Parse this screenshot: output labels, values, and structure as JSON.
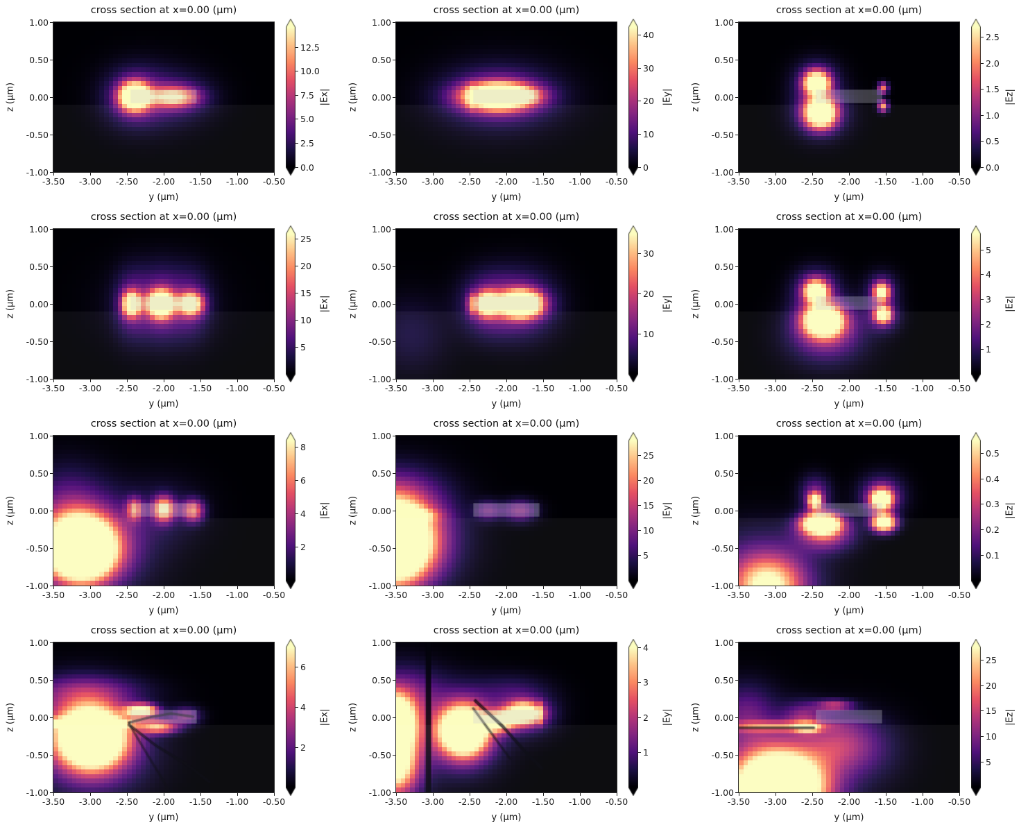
{
  "figure": {
    "background": "#ffffff",
    "rows": 4,
    "cols": 3
  },
  "colormap": {
    "name": "magma",
    "stops": [
      [
        0.0,
        "#000004"
      ],
      [
        0.125,
        "#1c1044"
      ],
      [
        0.25,
        "#4f127b"
      ],
      [
        0.375,
        "#812581"
      ],
      [
        0.5,
        "#b5367a"
      ],
      [
        0.625,
        "#e55064"
      ],
      [
        0.75,
        "#fb8861"
      ],
      [
        0.875,
        "#fec287"
      ],
      [
        1.0,
        "#fcfdbf"
      ]
    ]
  },
  "axes": {
    "xlim": [
      -3.5,
      -0.5
    ],
    "ylim": [
      -1.0,
      1.0
    ],
    "xticks": [
      [
        "-3.50",
        -3.5
      ],
      [
        "-3.00",
        -3.0
      ],
      [
        "-2.50",
        -2.5
      ],
      [
        "-2.00",
        -2.0
      ],
      [
        "-1.50",
        -1.5
      ],
      [
        "-1.00",
        -1.0
      ],
      [
        "-0.50",
        -0.5
      ]
    ],
    "yticks": [
      [
        "1.00",
        1.0
      ],
      [
        "0.50",
        0.5
      ],
      [
        "0.00",
        0.0
      ],
      [
        "-0.50",
        -0.5
      ],
      [
        "-1.00",
        -1.0
      ]
    ]
  },
  "structures": {
    "waveguide": {
      "y": [
        -2.45,
        -1.55
      ],
      "z": [
        -0.08,
        0.1
      ],
      "overlay_color": "rgba(205,205,215,0.30)"
    },
    "substrate_top_z": -0.1,
    "substrate_overlay_color": "rgba(255,255,255,0.05)"
  },
  "chart_data": [
    {
      "type": "heatmap",
      "title": "cross section at x=0.00 (μm)",
      "xlabel": "y (μm)",
      "ylabel": "z (μm)",
      "colorbar": {
        "label": "|Ex|",
        "vmin": 0,
        "vmax": 14.6,
        "ticks": [
          [
            "0.0",
            0
          ],
          [
            "2.5",
            2.5
          ],
          [
            "5.0",
            5
          ],
          [
            "7.5",
            7.5
          ],
          [
            "10.0",
            10
          ],
          [
            "12.5",
            12.5
          ]
        ]
      },
      "blobs": [
        [
          -2.4,
          0.01,
          0.13,
          0.12,
          1.55
        ],
        [
          -2.4,
          0.0,
          0.26,
          0.24,
          0.34
        ],
        [
          -1.86,
          0.0,
          0.22,
          0.09,
          0.78
        ],
        [
          -1.82,
          0.0,
          0.32,
          0.2,
          0.22
        ],
        [
          -2.15,
          0.0,
          0.45,
          0.33,
          0.1
        ]
      ],
      "dark_curves": []
    },
    {
      "type": "heatmap",
      "title": "cross section at x=0.00 (μm)",
      "xlabel": "y (μm)",
      "ylabel": "z (μm)",
      "colorbar": {
        "label": "|Ey|",
        "vmin": 0,
        "vmax": 42.5,
        "ticks": [
          [
            "0",
            0
          ],
          [
            "10",
            10
          ],
          [
            "20",
            20
          ],
          [
            "30",
            30
          ],
          [
            "40",
            40
          ]
        ]
      },
      "blobs": [
        [
          -2.12,
          0.01,
          0.3,
          0.11,
          1.55
        ],
        [
          -2.1,
          0.01,
          0.44,
          0.2,
          0.42
        ],
        [
          -2.1,
          0.0,
          0.58,
          0.34,
          0.16
        ],
        [
          -2.49,
          0.0,
          0.018,
          0.095,
          0.85
        ],
        [
          -1.72,
          0.02,
          0.18,
          0.08,
          0.25
        ]
      ],
      "dark_curves": []
    },
    {
      "type": "heatmap",
      "title": "cross section at x=0.00 (μm)",
      "xlabel": "y (μm)",
      "ylabel": "z (μm)",
      "colorbar": {
        "label": "|Ez|",
        "vmin": 0,
        "vmax": 2.7,
        "ticks": [
          [
            "0.0",
            0
          ],
          [
            "0.5",
            0.5
          ],
          [
            "1.0",
            1.0
          ],
          [
            "1.5",
            1.5
          ],
          [
            "2.0",
            2.0
          ],
          [
            "2.5",
            2.5
          ]
        ]
      },
      "blobs": [
        [
          -2.44,
          0.19,
          0.11,
          0.1,
          1.45
        ],
        [
          -2.44,
          0.2,
          0.21,
          0.19,
          0.33
        ],
        [
          -2.39,
          -0.21,
          0.14,
          0.13,
          1.55
        ],
        [
          -2.39,
          -0.22,
          0.25,
          0.21,
          0.33
        ],
        [
          -1.54,
          0.12,
          0.045,
          0.05,
          0.8
        ],
        [
          -1.54,
          -0.12,
          0.045,
          0.05,
          0.9
        ]
      ],
      "dark_curves": []
    },
    {
      "type": "heatmap",
      "title": "cross section at x=0.00 (μm)",
      "xlabel": "y (μm)",
      "ylabel": "z (μm)",
      "colorbar": {
        "label": "|Ex|",
        "vmin": 0,
        "vmax": 26,
        "ticks": [
          [
            "5",
            5
          ],
          [
            "10",
            10
          ],
          [
            "15",
            15
          ],
          [
            "20",
            20
          ],
          [
            "25",
            25
          ]
        ]
      },
      "blobs": [
        [
          -2.44,
          0.0,
          0.08,
          0.11,
          1.25
        ],
        [
          -2.04,
          0.0,
          0.12,
          0.12,
          1.55
        ],
        [
          -1.63,
          0.0,
          0.11,
          0.1,
          1.15
        ],
        [
          -2.44,
          0.0,
          0.16,
          0.3,
          0.28
        ],
        [
          -2.04,
          0.0,
          0.2,
          0.32,
          0.3
        ],
        [
          -1.63,
          0.0,
          0.18,
          0.3,
          0.26
        ],
        [
          -2.05,
          0.0,
          0.55,
          0.38,
          0.08
        ]
      ],
      "dark_curves": []
    },
    {
      "type": "heatmap",
      "title": "cross section at x=0.00 (μm)",
      "xlabel": "y (μm)",
      "ylabel": "z (μm)",
      "colorbar": {
        "label": "|Ey|",
        "vmin": 0,
        "vmax": 35,
        "ticks": [
          [
            "10",
            10
          ],
          [
            "20",
            20
          ],
          [
            "30",
            30
          ]
        ]
      },
      "blobs": [
        [
          -2.27,
          0.0,
          0.11,
          0.11,
          1.15
        ],
        [
          -1.8,
          0.0,
          0.19,
          0.12,
          1.65
        ],
        [
          -2.27,
          0.0,
          0.25,
          0.28,
          0.3
        ],
        [
          -1.8,
          0.0,
          0.32,
          0.3,
          0.35
        ],
        [
          -2.49,
          0.0,
          0.016,
          0.09,
          0.95
        ],
        [
          -1.56,
          0.0,
          0.014,
          0.09,
          0.7
        ],
        [
          -3.3,
          -0.4,
          0.35,
          0.35,
          0.12
        ]
      ],
      "dark_curves": []
    },
    {
      "type": "heatmap",
      "title": "cross section at x=0.00 (μm)",
      "xlabel": "y (μm)",
      "ylabel": "z (μm)",
      "colorbar": {
        "label": "|Ez|",
        "vmin": 0,
        "vmax": 5.65,
        "ticks": [
          [
            "1",
            1
          ],
          [
            "2",
            2
          ],
          [
            "3",
            3
          ],
          [
            "4",
            4
          ],
          [
            "5",
            5
          ]
        ]
      },
      "blobs": [
        [
          -2.45,
          0.17,
          0.1,
          0.09,
          1.35
        ],
        [
          -2.45,
          0.2,
          0.2,
          0.18,
          0.4
        ],
        [
          -1.56,
          0.16,
          0.07,
          0.08,
          1.05
        ],
        [
          -1.56,
          0.18,
          0.15,
          0.16,
          0.3
        ],
        [
          -2.35,
          -0.22,
          0.17,
          0.13,
          1.65
        ],
        [
          -2.33,
          -0.28,
          0.3,
          0.24,
          0.45
        ],
        [
          -1.54,
          -0.14,
          0.07,
          0.07,
          1.25
        ],
        [
          -1.54,
          -0.16,
          0.15,
          0.14,
          0.35
        ],
        [
          -2.3,
          -0.5,
          0.38,
          0.26,
          0.16
        ]
      ],
      "dark_curves": []
    },
    {
      "type": "heatmap",
      "title": "cross section at x=0.00 (μm)",
      "xlabel": "y (μm)",
      "ylabel": "z (μm)",
      "colorbar": {
        "label": "|Ex|",
        "vmin": 0,
        "vmax": 8.4,
        "ticks": [
          [
            "2",
            2
          ],
          [
            "4",
            4
          ],
          [
            "6",
            6
          ],
          [
            "8",
            8
          ]
        ]
      },
      "blobs": [
        [
          -3.12,
          -0.52,
          0.3,
          0.27,
          2.2
        ],
        [
          -3.1,
          -0.45,
          0.55,
          0.42,
          0.48
        ],
        [
          -3.3,
          0.05,
          0.35,
          0.38,
          0.22
        ],
        [
          -2.4,
          0.02,
          0.07,
          0.1,
          0.68
        ],
        [
          -2.0,
          0.02,
          0.1,
          0.11,
          0.98
        ],
        [
          -1.6,
          0.0,
          0.1,
          0.1,
          0.72
        ],
        [
          -2.0,
          0.0,
          0.38,
          0.3,
          0.12
        ]
      ],
      "dark_curves": []
    },
    {
      "type": "heatmap",
      "title": "cross section at x=0.00 (μm)",
      "xlabel": "y (μm)",
      "ylabel": "z (μm)",
      "colorbar": {
        "label": "|Ey|",
        "vmin": 0,
        "vmax": 28,
        "ticks": [
          [
            "5",
            5
          ],
          [
            "10",
            10
          ],
          [
            "15",
            15
          ],
          [
            "20",
            20
          ],
          [
            "25",
            25
          ]
        ]
      },
      "blobs": [
        [
          -3.55,
          -0.45,
          0.33,
          0.33,
          2.1
        ],
        [
          -3.45,
          -0.06,
          0.28,
          0.06,
          0.75
        ],
        [
          -3.45,
          -0.35,
          0.5,
          0.45,
          0.55
        ],
        [
          -3.5,
          0.15,
          0.4,
          0.28,
          0.28
        ],
        [
          -2.25,
          0.0,
          0.12,
          0.09,
          0.32
        ],
        [
          -1.82,
          0.0,
          0.16,
          0.1,
          0.4
        ]
      ],
      "dark_curves": []
    },
    {
      "type": "heatmap",
      "title": "cross section at x=0.00 (μm)",
      "xlabel": "y (μm)",
      "ylabel": "z (μm)",
      "colorbar": {
        "label": "|Ez|",
        "vmin": 0,
        "vmax": 0.55,
        "ticks": [
          [
            "0.1",
            0.1
          ],
          [
            "0.2",
            0.2
          ],
          [
            "0.3",
            0.3
          ],
          [
            "0.4",
            0.4
          ],
          [
            "0.5",
            0.5
          ]
        ]
      },
      "blobs": [
        [
          -2.46,
          0.13,
          0.06,
          0.07,
          1.2
        ],
        [
          -2.46,
          0.22,
          0.14,
          0.16,
          0.35
        ],
        [
          -1.56,
          0.15,
          0.1,
          0.09,
          1.4
        ],
        [
          -1.56,
          0.2,
          0.2,
          0.18,
          0.4
        ],
        [
          -2.38,
          -0.17,
          0.17,
          0.09,
          1.7
        ],
        [
          -2.32,
          -0.3,
          0.26,
          0.16,
          0.55
        ],
        [
          -1.53,
          -0.16,
          0.11,
          0.08,
          1.5
        ],
        [
          -3.1,
          -1.02,
          0.33,
          0.26,
          0.9
        ],
        [
          -3.2,
          -0.8,
          0.5,
          0.38,
          0.3
        ]
      ],
      "dark_curves": []
    },
    {
      "type": "heatmap",
      "title": "cross section at x=0.00 (μm)",
      "xlabel": "y (μm)",
      "ylabel": "z (μm)",
      "colorbar": {
        "label": "|Ex|",
        "vmin": 0,
        "vmax": 7.0,
        "ticks": [
          [
            "2",
            2
          ],
          [
            "4",
            4
          ],
          [
            "6",
            6
          ]
        ]
      },
      "blobs": [
        [
          -2.98,
          -0.28,
          0.3,
          0.26,
          1.8
        ],
        [
          -3.0,
          -0.35,
          0.5,
          0.42,
          0.5
        ],
        [
          -3.05,
          -0.08,
          0.45,
          0.045,
          0.75
        ],
        [
          -3.05,
          0.36,
          0.55,
          0.13,
          0.2
        ],
        [
          -3.2,
          0.1,
          0.45,
          0.3,
          0.22
        ],
        [
          -2.3,
          0.09,
          0.14,
          0.055,
          1.35
        ],
        [
          -2.07,
          -0.13,
          0.18,
          0.06,
          0.8
        ],
        [
          -1.7,
          0.02,
          0.14,
          0.08,
          0.38
        ]
      ],
      "dark_curves": [
        {
          "pts": [
            [
              -2.47,
              -0.07
            ],
            [
              -2.15,
              0.01
            ],
            [
              -1.9,
              0.05
            ],
            [
              -1.6,
              0.01
            ]
          ],
          "w": 3,
          "alpha": 0.55
        },
        {
          "pts": [
            [
              -2.47,
              -0.1
            ],
            [
              -2.1,
              -0.38
            ],
            [
              -1.7,
              -0.62
            ],
            [
              -1.38,
              -0.86
            ]
          ],
          "w": 3.5,
          "alpha": 0.5
        },
        {
          "pts": [
            [
              -2.45,
              -0.12
            ],
            [
              -2.22,
              -0.5
            ],
            [
              -2.02,
              -0.82
            ],
            [
              -1.92,
              -1.0
            ]
          ],
          "w": 3,
          "alpha": 0.4
        }
      ]
    },
    {
      "type": "heatmap",
      "title": "cross section at x=0.00 (μm)",
      "xlabel": "y (μm)",
      "ylabel": "z (μm)",
      "colorbar": {
        "label": "|Ey|",
        "vmin": 0,
        "vmax": 4.0,
        "ticks": [
          [
            "1",
            1
          ],
          [
            "2",
            2
          ],
          [
            "3",
            3
          ],
          [
            "4",
            4
          ]
        ]
      },
      "blobs": [
        [
          -3.52,
          -0.08,
          0.17,
          0.24,
          1.7
        ],
        [
          -3.5,
          -0.65,
          0.18,
          0.26,
          0.95
        ],
        [
          -3.45,
          -0.3,
          0.3,
          0.5,
          0.45
        ],
        [
          -2.58,
          -0.18,
          0.22,
          0.22,
          1.75
        ],
        [
          -2.6,
          -0.2,
          0.35,
          0.35,
          0.4
        ],
        [
          -2.1,
          -0.06,
          0.14,
          0.09,
          0.95
        ],
        [
          -1.76,
          0.05,
          0.17,
          0.1,
          1.3
        ],
        [
          -1.76,
          0.05,
          0.28,
          0.2,
          0.3
        ],
        [
          -1.54,
          0.05,
          0.015,
          0.09,
          0.8
        ],
        [
          -3.3,
          0.3,
          0.4,
          0.25,
          0.22
        ],
        [
          -1.95,
          0.35,
          0.35,
          0.16,
          0.14
        ]
      ],
      "dark_curves": [
        {
          "pts": [
            [
              -3.06,
              1.0
            ],
            [
              -3.06,
              -1.0
            ]
          ],
          "w": 7,
          "alpha": 0.8
        },
        {
          "pts": [
            [
              -2.42,
              0.22
            ],
            [
              -2.05,
              -0.12
            ],
            [
              -1.75,
              -0.45
            ],
            [
              -1.52,
              -0.68
            ]
          ],
          "w": 4,
          "alpha": 0.6
        },
        {
          "pts": [
            [
              -2.45,
              0.12
            ],
            [
              -2.25,
              -0.15
            ],
            [
              -2.1,
              -0.35
            ],
            [
              -1.95,
              -0.55
            ]
          ],
          "w": 3,
          "alpha": 0.45
        }
      ]
    },
    {
      "type": "heatmap",
      "title": "cross section at x=0.00 (μm)",
      "xlabel": "y (μm)",
      "ylabel": "z (μm)",
      "colorbar": {
        "label": "|Ez|",
        "vmin": 0,
        "vmax": 27.5,
        "ticks": [
          [
            "5",
            5
          ],
          [
            "10",
            10
          ],
          [
            "15",
            15
          ],
          [
            "20",
            20
          ],
          [
            "25",
            25
          ]
        ]
      },
      "blobs": [
        [
          -2.95,
          -0.95,
          0.38,
          0.3,
          2.0
        ],
        [
          -3.0,
          -0.8,
          0.6,
          0.45,
          0.5
        ],
        [
          -3.0,
          -0.12,
          0.48,
          0.045,
          0.55
        ],
        [
          -2.56,
          -0.14,
          0.1,
          0.04,
          0.85
        ],
        [
          -2.2,
          0.16,
          0.17,
          0.05,
          0.5
        ],
        [
          -2.62,
          0.0,
          0.18,
          0.14,
          0.33
        ],
        [
          -2.15,
          -0.35,
          0.32,
          0.25,
          0.35
        ],
        [
          -1.75,
          -0.4,
          0.35,
          0.3,
          0.15
        ],
        [
          -3.4,
          0.05,
          0.28,
          0.28,
          0.28
        ]
      ],
      "dark_curves": [
        {
          "pts": [
            [
              -3.5,
              -0.14
            ],
            [
              -2.48,
              -0.14
            ]
          ],
          "w": 3,
          "alpha": 0.55
        }
      ]
    }
  ]
}
